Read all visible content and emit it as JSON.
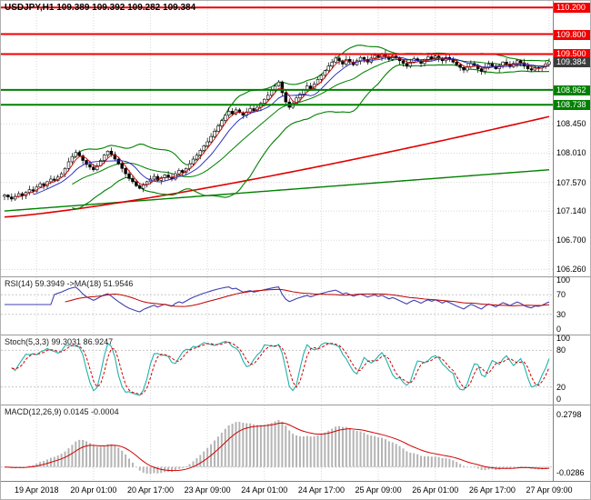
{
  "window": {
    "title": "USDJPY,H1 109.389 109.392 109.282 109.384"
  },
  "colors": {
    "resistance_line": "#f00000",
    "support_line": "#008000",
    "current_price_badge": "#3c3c3c",
    "grid": "#d8d8d8",
    "rsi_line": "#4040b0",
    "rsi_ma_line": "#c00000",
    "stoch_k_line": "#20b2aa",
    "stoch_d_line": "#d00000",
    "macd_histogram": "#b4b4b4",
    "macd_signal": "#d00000"
  },
  "chart_data": [
    {
      "id": "main",
      "type": "candlestick",
      "symbol": "USDJPY",
      "timeframe": "H1",
      "title": "USDJPY,H1 109.389 109.392 109.282 109.384",
      "ohlc_display": {
        "open": 109.389,
        "high": 109.392,
        "low": 109.282,
        "close": 109.384
      },
      "current_price": 109.384,
      "ylim": [
        106.17,
        110.3
      ],
      "y_ticks": [
        {
          "label": "108.450",
          "price": 108.45
        },
        {
          "label": "108.010",
          "price": 108.01
        },
        {
          "label": "107.570",
          "price": 107.57
        },
        {
          "label": "107.140",
          "price": 107.14
        },
        {
          "label": "106.700",
          "price": 106.7
        },
        {
          "label": "106.260",
          "price": 106.26
        }
      ],
      "badges": [
        {
          "label": "110.200",
          "price": 110.2,
          "color": "#f00000"
        },
        {
          "label": "109.800",
          "price": 109.8,
          "color": "#f00000"
        },
        {
          "label": "109.500",
          "price": 109.5,
          "color": "#f00000"
        },
        {
          "label": "109.384",
          "price": 109.384,
          "color": "#3c3c3c"
        },
        {
          "label": "108.962",
          "price": 108.962,
          "color": "#008000"
        },
        {
          "label": "108.738",
          "price": 108.738,
          "color": "#008000"
        }
      ],
      "hlines_resistance": [
        110.2,
        109.8,
        109.5
      ],
      "hlines_support": [
        108.962,
        108.738
      ],
      "x_tick_labels": [
        "19 Apr 2018",
        "20 Apr 01:00",
        "20 Apr 17:00",
        "23 Apr 09:00",
        "24 Apr 01:00",
        "24 Apr 17:00",
        "25 Apr 09:00",
        "26 Apr 01:00",
        "26 Apr 17:00",
        "27 Apr 09:00"
      ],
      "x_tick_bars": [
        9,
        25,
        41,
        57,
        73,
        89,
        105,
        121,
        137,
        153
      ],
      "ma_red_slow": {
        "start": 107.05,
        "end": 108.56
      },
      "ma_green_slow": {
        "start": 107.14,
        "end": 107.76
      },
      "closes": [
        107.38,
        107.35,
        107.32,
        107.36,
        107.4,
        107.37,
        107.42,
        107.46,
        107.44,
        107.5,
        107.55,
        107.52,
        107.58,
        107.62,
        107.6,
        107.65,
        107.7,
        107.78,
        107.88,
        107.96,
        108.02,
        107.97,
        107.9,
        107.84,
        107.8,
        107.76,
        107.82,
        107.9,
        107.98,
        108.04,
        107.99,
        107.92,
        107.85,
        107.78,
        107.7,
        107.63,
        107.58,
        107.52,
        107.48,
        107.54,
        107.58,
        107.62,
        107.66,
        107.6,
        107.64,
        107.68,
        107.65,
        107.62,
        107.7,
        107.75,
        107.72,
        107.78,
        107.85,
        107.92,
        107.98,
        108.05,
        108.12,
        108.18,
        108.26,
        108.34,
        108.42,
        108.5,
        108.58,
        108.64,
        108.6,
        108.66,
        108.62,
        108.58,
        108.63,
        108.68,
        108.65,
        108.7,
        108.76,
        108.82,
        108.88,
        108.95,
        109.02,
        109.08,
        108.92,
        108.78,
        108.7,
        108.76,
        108.84,
        108.9,
        108.96,
        109.02,
        108.98,
        109.05,
        109.12,
        109.18,
        109.25,
        109.32,
        109.38,
        109.44,
        109.4,
        109.35,
        109.42,
        109.38,
        109.34,
        109.4,
        109.45,
        109.42,
        109.38,
        109.44,
        109.48,
        109.45,
        109.5,
        109.46,
        109.42,
        109.47,
        109.44,
        109.4,
        109.36,
        109.32,
        109.38,
        109.43,
        109.4,
        109.36,
        109.42,
        109.46,
        109.43,
        109.47,
        109.44,
        109.4,
        109.45,
        109.42,
        109.38,
        109.34,
        109.3,
        109.26,
        109.31,
        109.36,
        109.33,
        109.28,
        109.24,
        109.3,
        109.35,
        109.32,
        109.28,
        109.33,
        109.38,
        109.35,
        109.31,
        109.36,
        109.4,
        109.37,
        109.32,
        109.28,
        109.26,
        109.3,
        109.29,
        109.31,
        109.35,
        109.384
      ]
    },
    {
      "id": "rsi",
      "type": "line",
      "title": "RSI(14) 59.3949 ->MA(18) 51.9546",
      "period": 14,
      "ma_period": 18,
      "current": 59.3949,
      "ma_current": 51.9546,
      "ylim": [
        0,
        100
      ],
      "levels": [
        70,
        30
      ],
      "y_ticks": [
        {
          "label": "100",
          "value": 100
        },
        {
          "label": "70",
          "value": 70
        },
        {
          "label": "30",
          "value": 30
        },
        {
          "label": "0",
          "value": 0
        }
      ]
    },
    {
      "id": "stoch",
      "type": "line",
      "title": "Stoch(5,3,3) 99.3031 86.9247",
      "current_k": 99.3031,
      "current_d": 86.9247,
      "ylim": [
        0,
        100
      ],
      "levels": [
        80,
        20
      ],
      "y_ticks": [
        {
          "label": "100",
          "value": 100
        },
        {
          "label": "80",
          "value": 80
        },
        {
          "label": "20",
          "value": 20
        },
        {
          "label": "0",
          "value": 0
        }
      ]
    },
    {
      "id": "macd",
      "type": "bar",
      "title": "MACD(12,26,9) 0.0145 -0.0004",
      "current_main": 0.0145,
      "current_signal": -0.0004,
      "ylim": [
        -0.05,
        0.31
      ],
      "y_ticks": [
        {
          "label": "0.2798",
          "value": 0.2798
        },
        {
          "label": "-0.0286",
          "value": -0.0286
        }
      ]
    }
  ]
}
